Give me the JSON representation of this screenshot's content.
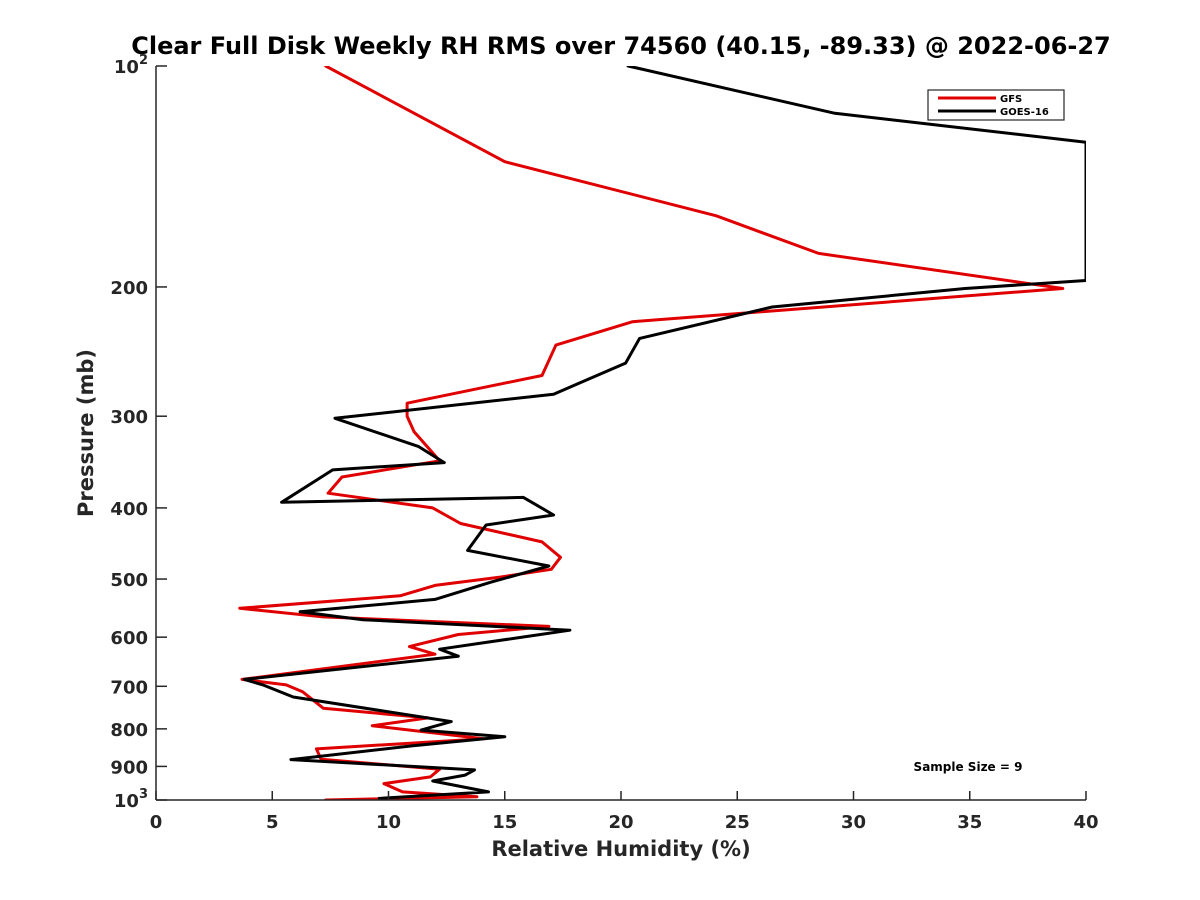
{
  "chart_data": {
    "type": "line",
    "title": "Clear Full Disk Weekly RH RMS over 74560 (40.15, -89.33) @ 2022-06-27",
    "xlabel": "Relative Humidity (%)",
    "ylabel": "Pressure (mb)",
    "xlim": [
      0,
      40
    ],
    "ylim": [
      100,
      1000
    ],
    "yscale": "log",
    "y_reversed": true,
    "xticks": [
      "0",
      "5",
      "10",
      "15",
      "20",
      "25",
      "30",
      "35",
      "40"
    ],
    "yticks": [
      {
        "value": 100,
        "base": "10",
        "exp": "2",
        "label": ""
      },
      {
        "value": 200,
        "label": "200"
      },
      {
        "value": 300,
        "label": "300"
      },
      {
        "value": 400,
        "label": "400"
      },
      {
        "value": 500,
        "label": "500"
      },
      {
        "value": 600,
        "label": "600"
      },
      {
        "value": 700,
        "label": "700"
      },
      {
        "value": 800,
        "label": "800"
      },
      {
        "value": 900,
        "label": "900"
      },
      {
        "value": 1000,
        "base": "10",
        "exp": "3",
        "label": ""
      }
    ],
    "grid": false,
    "legend_position": "top-right",
    "annotation": "Sample Size = 9",
    "series": [
      {
        "name": "GFS",
        "color": "#e00000",
        "x": [
          7.3,
          15.0,
          24.1,
          28.5,
          39.0,
          20.5,
          17.2,
          16.6,
          10.8,
          10.8,
          11.1,
          12.2,
          8.0,
          7.4,
          11.9,
          13.1,
          16.6,
          17.4,
          17.0,
          14.8,
          12.0,
          10.5,
          3.6,
          7.2,
          16.9,
          13.0,
          10.9,
          12.0,
          3.7,
          5.6,
          6.3,
          7.2,
          11.7,
          9.3,
          14.1,
          6.9,
          7.1,
          12.2,
          11.8,
          9.8,
          10.6,
          13.8,
          7.3
        ],
        "y": [
          100,
          135,
          160,
          180,
          201,
          223,
          240,
          264,
          288,
          300,
          315,
          345,
          363,
          382,
          400,
          420,
          445,
          467,
          485,
          497,
          510,
          527,
          548,
          563,
          580,
          595,
          618,
          633,
          685,
          697,
          712,
          750,
          773,
          792,
          825,
          852,
          880,
          908,
          930,
          950,
          975,
          990,
          1000
        ]
      },
      {
        "name": "GOES-16",
        "color": "#000000",
        "x": [
          20.3,
          29.2,
          40.0,
          40.0,
          34.8,
          26.5,
          20.8,
          20.2,
          17.1,
          7.7,
          11.3,
          12.4,
          7.6,
          5.4,
          15.8,
          17.1,
          14.2,
          13.4,
          16.9,
          14.4,
          12.0,
          6.2,
          8.9,
          17.8,
          14.2,
          12.2,
          13.0,
          3.8,
          4.6,
          5.9,
          12.7,
          11.4,
          15.0,
          11.0,
          5.8,
          13.7,
          13.3,
          11.9,
          14.3,
          9.6
        ],
        "y": [
          100,
          116,
          127,
          196,
          201,
          213,
          235,
          254,
          280,
          302,
          330,
          347,
          355,
          393,
          387,
          409,
          422,
          457,
          480,
          505,
          533,
          554,
          568,
          587,
          610,
          623,
          637,
          685,
          697,
          724,
          782,
          803,
          820,
          844,
          881,
          910,
          925,
          942,
          975,
          995
        ]
      }
    ]
  }
}
